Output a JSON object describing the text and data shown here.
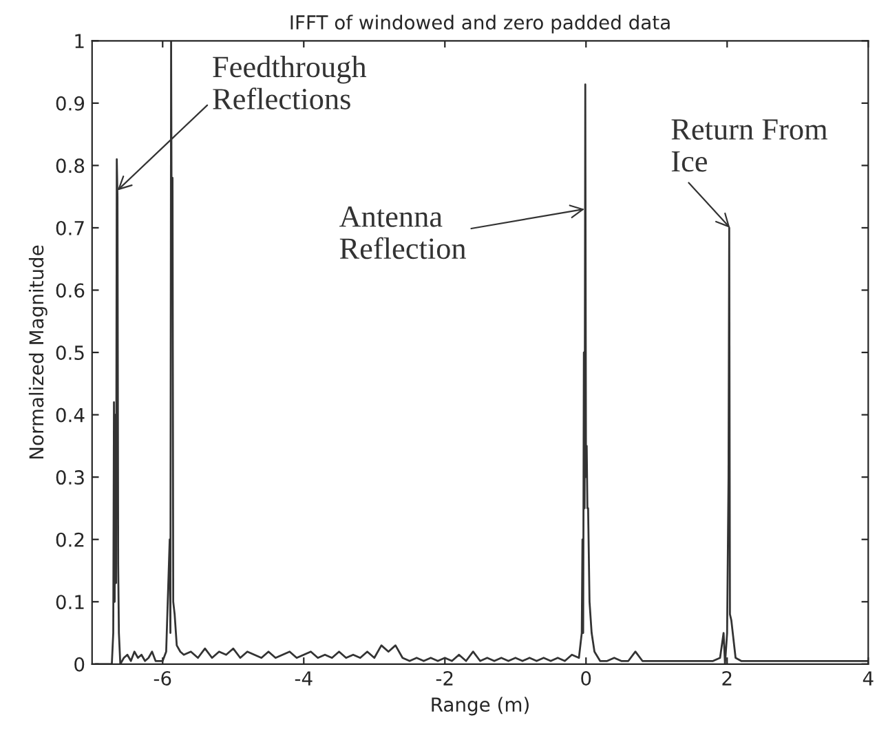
{
  "chart_data": {
    "type": "line",
    "title": "IFFT of windowed and zero padded data",
    "xlabel": "Range (m)",
    "ylabel": "Normalized Magnitude",
    "x": [
      -6.95,
      -6.72,
      -6.7,
      -6.69,
      -6.68,
      -6.67,
      -6.66,
      -6.65,
      -6.64,
      -6.63,
      -6.62,
      -6.6,
      -6.55,
      -6.5,
      -6.45,
      -6.4,
      -6.35,
      -6.3,
      -6.25,
      -6.2,
      -6.15,
      -6.1,
      -6.0,
      -5.95,
      -5.9,
      -5.89,
      -5.88,
      -5.87,
      -5.86,
      -5.85,
      -5.83,
      -5.8,
      -5.75,
      -5.7,
      -5.6,
      -5.5,
      -5.4,
      -5.3,
      -5.2,
      -5.1,
      -5.0,
      -4.9,
      -4.8,
      -4.7,
      -4.6,
      -4.5,
      -4.4,
      -4.3,
      -4.2,
      -4.1,
      -4.0,
      -3.9,
      -3.8,
      -3.7,
      -3.6,
      -3.5,
      -3.4,
      -3.3,
      -3.2,
      -3.1,
      -3.0,
      -2.9,
      -2.8,
      -2.7,
      -2.6,
      -2.5,
      -2.4,
      -2.3,
      -2.2,
      -2.1,
      -2.0,
      -1.9,
      -1.8,
      -1.7,
      -1.6,
      -1.5,
      -1.4,
      -1.3,
      -1.2,
      -1.1,
      -1.0,
      -0.9,
      -0.8,
      -0.7,
      -0.6,
      -0.5,
      -0.4,
      -0.3,
      -0.2,
      -0.1,
      -0.06,
      -0.05,
      -0.04,
      -0.03,
      -0.02,
      -0.01,
      0.0,
      0.01,
      0.02,
      0.03,
      0.05,
      0.08,
      0.12,
      0.2,
      0.3,
      0.4,
      0.5,
      0.6,
      0.7,
      0.8,
      1.0,
      1.2,
      1.4,
      1.6,
      1.8,
      1.9,
      1.95,
      1.97,
      2.0,
      2.02,
      2.03,
      2.04,
      2.06,
      2.08,
      2.12,
      2.2,
      2.4,
      2.6,
      2.8,
      3.0,
      3.5,
      4.0
    ],
    "series": [
      {
        "color": "#333333",
        "values": [
          0.0,
          0.0,
          0.05,
          0.42,
          0.1,
          0.4,
          0.13,
          0.81,
          0.75,
          0.16,
          0.05,
          0.0,
          0.01,
          0.015,
          0.005,
          0.02,
          0.01,
          0.015,
          0.005,
          0.01,
          0.02,
          0.005,
          0.005,
          0.02,
          0.2,
          0.05,
          1.0,
          0.6,
          0.78,
          0.1,
          0.08,
          0.03,
          0.02,
          0.015,
          0.02,
          0.01,
          0.025,
          0.01,
          0.02,
          0.015,
          0.025,
          0.01,
          0.02,
          0.015,
          0.01,
          0.02,
          0.01,
          0.015,
          0.02,
          0.01,
          0.015,
          0.02,
          0.01,
          0.015,
          0.01,
          0.02,
          0.01,
          0.015,
          0.01,
          0.02,
          0.01,
          0.03,
          0.02,
          0.03,
          0.01,
          0.005,
          0.01,
          0.005,
          0.01,
          0.005,
          0.01,
          0.005,
          0.015,
          0.005,
          0.02,
          0.005,
          0.01,
          0.005,
          0.01,
          0.005,
          0.01,
          0.005,
          0.01,
          0.005,
          0.01,
          0.005,
          0.01,
          0.005,
          0.015,
          0.01,
          0.05,
          0.2,
          0.05,
          0.5,
          0.25,
          0.93,
          0.3,
          0.35,
          0.25,
          0.25,
          0.1,
          0.05,
          0.02,
          0.005,
          0.005,
          0.01,
          0.005,
          0.005,
          0.02,
          0.005,
          0.005,
          0.005,
          0.005,
          0.005,
          0.005,
          0.01,
          0.05,
          0.0,
          0.05,
          0.3,
          0.7,
          0.08,
          0.07,
          0.05,
          0.01,
          0.005,
          0.005,
          0.005,
          0.005,
          0.005,
          0.005,
          0.005
        ]
      }
    ],
    "xlim": [
      -7,
      4
    ],
    "xticks": [
      -6,
      -4,
      -2,
      0,
      2,
      4
    ],
    "ylim": [
      0,
      1
    ],
    "yticks": [
      0,
      0.1,
      0.2,
      0.3,
      0.4,
      0.5,
      0.6,
      0.7,
      0.8,
      0.9,
      1
    ],
    "grid": false,
    "legend": false,
    "annotations": [
      {
        "text": "Feedthrough\nReflections",
        "x": -6.64,
        "y": 0.76
      },
      {
        "text": "Antenna\nReflection",
        "x": -0.02,
        "y": 0.73
      },
      {
        "text": "Return From\nIce",
        "x": 2.04,
        "y": 0.7
      }
    ]
  }
}
